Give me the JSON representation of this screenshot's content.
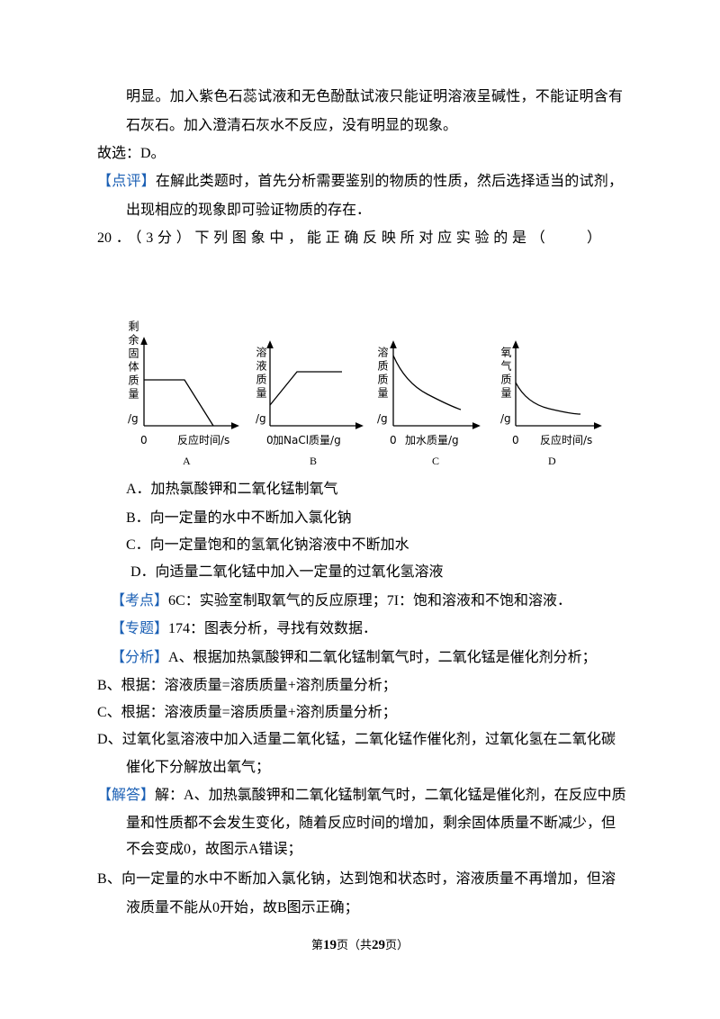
{
  "previous_solution": {
    "lines": [
      "明显。加入紫色石蕊试液和无色酚酞试液只能证明溶液呈碱性，不能证明含有",
      "石灰石。加入澄清石灰水不反应，没有明显的现象。"
    ],
    "answer": "故选：D。",
    "comment": {
      "tag": "【点评】",
      "lines": [
        "在解此类题时，首先分析需要鉴别的物质的性质，然后选择适当的试剂，",
        "出现相应的现象即可验证物质的存在．"
      ]
    }
  },
  "question": {
    "stem": "20．（3分）下列图象中，能正确反映所对应实验的是（　　）",
    "graphs": [
      {
        "y_label": "剩余固体质量",
        "y_unit": "/g",
        "origin": "0",
        "x_label": "反应时间/s",
        "letter": "A"
      },
      {
        "y_label": "溶液质量",
        "y_unit": "/g",
        "origin": "0",
        "x_label": "加NaCl质量/g",
        "letter": "B"
      },
      {
        "y_label": "溶质质量",
        "y_unit": "/g",
        "origin": "0",
        "x_label": "加水质量/g",
        "letter": "C"
      },
      {
        "y_label": "氧气质量",
        "y_unit": "/g",
        "origin": "0",
        "x_label": "反应时间/s",
        "letter": "D"
      }
    ],
    "options": [
      "A．加热氯酸钾和二氧化锰制氧气",
      "B．向一定量的水中不断加入氯化钠",
      "C．向一定量饱和的氢氧化钠溶液中不断加水",
      "D．向适量二氧化锰中加入一定量的过氧化氢溶液"
    ]
  },
  "solution": {
    "key_point": {
      "tag": "【考点】",
      "text": "6C：实验室制取氧气的反应原理；7I：饱和溶液和不饱和溶液．"
    },
    "topic": {
      "tag": "【专题】",
      "text": "174：图表分析，寻找有效数据．"
    },
    "analysis": {
      "tag": "【分析】",
      "lines": [
        "A、根据加热氯酸钾和二氧化锰制氧气时，二氧化锰是催化剂分析；",
        "B、根据：溶液质量=溶质质量+溶剂质量分析；",
        "C、根据：溶液质量=溶质质量+溶剂质量分析；",
        "D、过氧化氢溶液中加入适量二氧化锰，二氧化锰作催化剂，过氧化氢在二氧化碳",
        "催化下分解放出氧气；"
      ]
    },
    "answer": {
      "tag": "【解答】",
      "lines": [
        "解：A、加热氯酸钾和二氧化锰制氧气时，二氧化锰是催化剂，在反应中质",
        "量和性质都不会发生变化，随着反应时间的增加，剩余固体质量不断减少，但",
        "不会变成0，故图示A错误；",
        "B、向一定量的水中不断加入氯化钠，达到饱和状态时，溶液质量不再增加，但溶",
        "液质量不能从0开始，故B图示正确；"
      ]
    }
  },
  "footer": {
    "parts": [
      "第",
      "19",
      "页（共",
      "29",
      "页）"
    ]
  }
}
